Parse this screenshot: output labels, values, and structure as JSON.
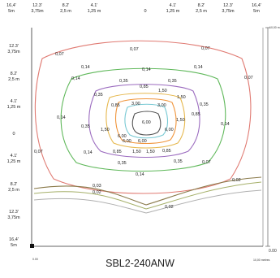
{
  "top_axis": [
    {
      "ft": "16,4'",
      "m": "5m"
    },
    {
      "ft": "12.3'",
      "m": "3,75m"
    },
    {
      "ft": "8.2'",
      "m": "2,5 m"
    },
    {
      "ft": "4.1'",
      "m": "1,25 m"
    },
    {
      "ft": "0",
      "m": ""
    },
    {
      "ft": "4.1'",
      "m": "1,25 m"
    },
    {
      "ft": "8.2'",
      "m": "2,5 m"
    },
    {
      "ft": "12.3'",
      "m": "3,75m"
    },
    {
      "ft": "16,4'",
      "m": "5m"
    }
  ],
  "left_axis": [
    {
      "ft": "12.3'",
      "m": "3,75m"
    },
    {
      "ft": "8.2'",
      "m": "2,5 m"
    },
    {
      "ft": "4.1'",
      "m": "1,25 m"
    },
    {
      "ft": "0",
      "m": ""
    },
    {
      "ft": "4.1'",
      "m": "1,25 m"
    },
    {
      "ft": "8.2'",
      "m": "2,5 m"
    },
    {
      "ft": "12.3'",
      "m": "3,75m"
    },
    {
      "ft": "16,4'",
      "m": "5m"
    }
  ],
  "scale": {
    "right_top": "10,00 m",
    "right_zero": "0.00",
    "bottom_zero": "0.00",
    "bottom_right": "10,00 metres"
  },
  "isolines": [
    {
      "value": "0,07",
      "color": "#e07a72"
    },
    {
      "value": "0,14",
      "color": "#5fb85a"
    },
    {
      "value": "0,35",
      "color": "#9b6bbf"
    },
    {
      "value": "0,85",
      "color": "#e6b84e"
    },
    {
      "value": "1,50",
      "color": "#f0943a"
    },
    {
      "value": "3,00",
      "color": "#78c9d4"
    },
    {
      "value": "6,00",
      "color": "#555555"
    }
  ],
  "lower_curves": [
    {
      "value": "0,03",
      "color": "#8a7a4a"
    },
    {
      "value": "0,02",
      "color": "#b0b0b0"
    }
  ],
  "value_labels": [
    "0,07",
    "0,07",
    "0,07",
    "0,07",
    "0,07",
    "0,07",
    "0,14",
    "0,14",
    "0,14",
    "0,14",
    "0,14",
    "0,14",
    "0,14",
    "0,14",
    "0,35",
    "0,35",
    "0,35",
    "0,35",
    "0,35",
    "0,35",
    "0,35",
    "0,85",
    "0,85",
    "0,85",
    "0,85",
    "0,85",
    "1,50",
    "1,50",
    "1,50",
    "1,50",
    "1,50",
    "1,50",
    "3,00",
    "3,00",
    "6,00",
    "6,00",
    "6,00",
    "6,00",
    "6,00",
    "0,03",
    "0,02",
    "0,02",
    "0,02"
  ],
  "model": "SBL2-240ANW"
}
